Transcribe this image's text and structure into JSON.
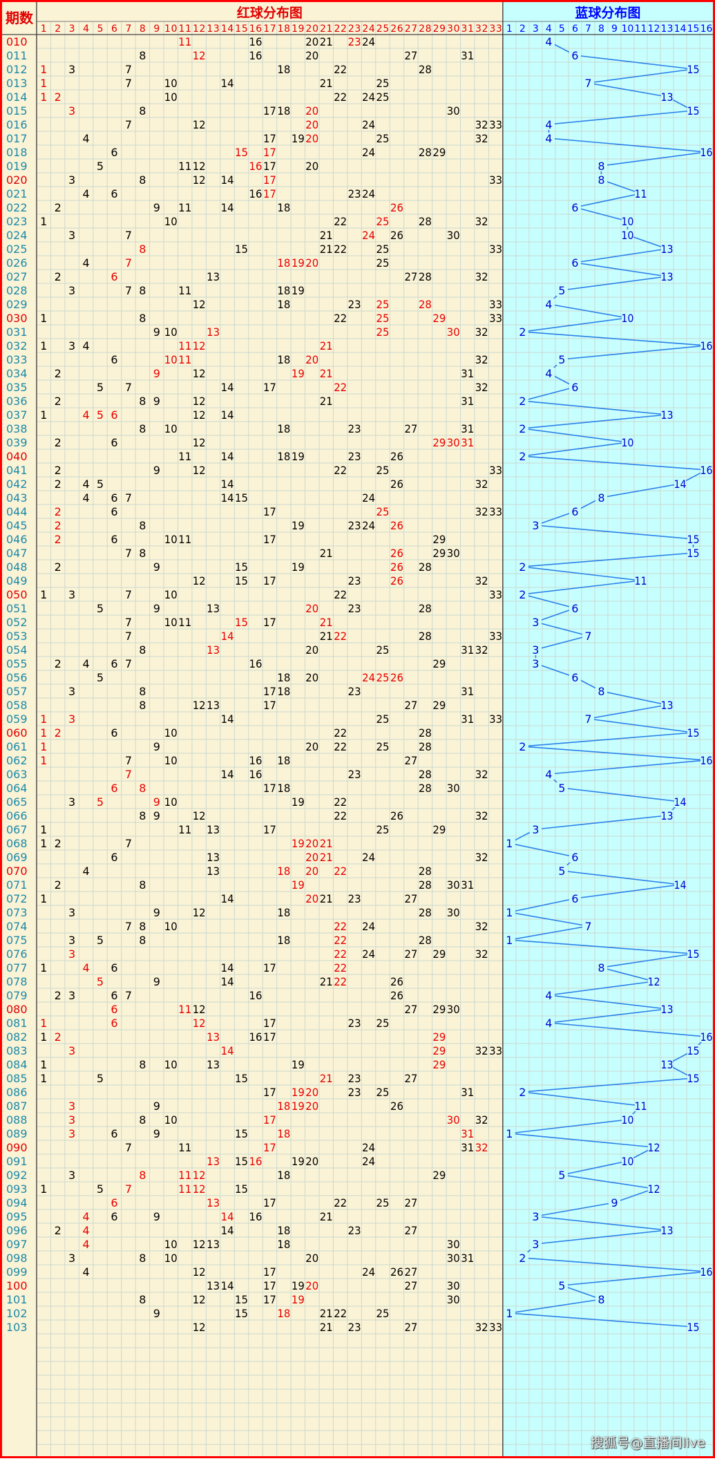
{
  "header": {
    "period_label": "期数",
    "red_title": "红球分布图",
    "blue_title": "蓝球分布图"
  },
  "watermark": "搜狐号@直播间live",
  "colors": {
    "red_bg": "#fbf3d6",
    "blue_bg": "#c7ffff",
    "border": "#ff0000",
    "red_num": "#e60000",
    "black_num": "#000000",
    "blue_num": "#0000d0",
    "line": "#2a7fe8",
    "grid": "#c9d9cf",
    "header_red": "#e00000",
    "header_blue": "#0000ff"
  },
  "chart_data": {
    "type": "table",
    "red_columns": [
      "1",
      "2",
      "3",
      "4",
      "5",
      "6",
      "7",
      "8",
      "9",
      "10",
      "11",
      "12",
      "13",
      "14",
      "15",
      "16",
      "17",
      "18",
      "19",
      "20",
      "21",
      "22",
      "23",
      "24",
      "25",
      "26",
      "27",
      "28",
      "29",
      "30",
      "31",
      "32",
      "33"
    ],
    "blue_columns": [
      "1",
      "2",
      "3",
      "4",
      "5",
      "6",
      "7",
      "8",
      "9",
      "10",
      "11",
      "12",
      "13",
      "14",
      "15",
      "16"
    ],
    "periods": [
      "010",
      "011",
      "012",
      "013",
      "014",
      "015",
      "016",
      "017",
      "018",
      "019",
      "020",
      "021",
      "022",
      "023",
      "024",
      "025",
      "026",
      "027",
      "028",
      "029",
      "030",
      "031",
      "032",
      "033",
      "034",
      "035",
      "036",
      "037",
      "038",
      "039",
      "040",
      "041",
      "042",
      "043",
      "044",
      "045",
      "046",
      "047",
      "048",
      "049",
      "050",
      "051",
      "052",
      "053",
      "054",
      "055",
      "056",
      "057",
      "058",
      "059",
      "060",
      "061",
      "062",
      "063",
      "064",
      "065",
      "066",
      "067",
      "068",
      "069",
      "070",
      "071",
      "072",
      "073",
      "074",
      "075",
      "076",
      "077",
      "078",
      "079",
      "080",
      "081",
      "082",
      "083",
      "084",
      "085",
      "086",
      "087",
      "088",
      "089",
      "090",
      "091",
      "092",
      "093",
      "094",
      "095",
      "096",
      "097",
      "098",
      "099",
      "100",
      "101",
      "102",
      "103"
    ],
    "red_period_labels": [
      "010",
      "020",
      "030",
      "040",
      "050",
      "060",
      "070",
      "080",
      "090",
      "100"
    ],
    "red_draws": [
      [
        11,
        16,
        20,
        21,
        23,
        24
      ],
      [
        8,
        12,
        16,
        20,
        27,
        31
      ],
      [
        1,
        3,
        7,
        18,
        22,
        28
      ],
      [
        1,
        7,
        10,
        14,
        21,
        25
      ],
      [
        1,
        2,
        10,
        22,
        24,
        25
      ],
      [
        3,
        8,
        17,
        18,
        20,
        30
      ],
      [
        7,
        12,
        20,
        24,
        32,
        33
      ],
      [
        4,
        17,
        19,
        20,
        25,
        32
      ],
      [
        6,
        15,
        17,
        24,
        28,
        29
      ],
      [
        5,
        11,
        12,
        16,
        17,
        20
      ],
      [
        3,
        8,
        12,
        14,
        17,
        33
      ],
      [
        4,
        6,
        16,
        17,
        23,
        24
      ],
      [
        2,
        9,
        11,
        14,
        18,
        26
      ],
      [
        1,
        10,
        22,
        25,
        28,
        32
      ],
      [
        3,
        7,
        21,
        24,
        26,
        30
      ],
      [
        8,
        15,
        21,
        22,
        25,
        33
      ],
      [
        4,
        7,
        18,
        19,
        20,
        25
      ],
      [
        2,
        6,
        13,
        27,
        28,
        32
      ],
      [
        3,
        7,
        8,
        11,
        18,
        19
      ],
      [
        12,
        18,
        23,
        25,
        28,
        33
      ],
      [
        1,
        8,
        22,
        25,
        29,
        33
      ],
      [
        9,
        10,
        13,
        25,
        30,
        32
      ],
      [
        1,
        3,
        4,
        11,
        12,
        21
      ],
      [
        6,
        10,
        11,
        18,
        20,
        32
      ],
      [
        2,
        9,
        12,
        19,
        21,
        31
      ],
      [
        5,
        7,
        14,
        17,
        22,
        32
      ],
      [
        2,
        8,
        9,
        12,
        21,
        31
      ],
      [
        1,
        4,
        5,
        6,
        12,
        14
      ],
      [
        8,
        10,
        18,
        23,
        27,
        31
      ],
      [
        2,
        6,
        12,
        29,
        30,
        31
      ],
      [
        11,
        14,
        18,
        19,
        23,
        26
      ],
      [
        2,
        9,
        12,
        22,
        25,
        33
      ],
      [
        2,
        4,
        5,
        14,
        26,
        32
      ],
      [
        4,
        6,
        7,
        14,
        15,
        24
      ],
      [
        2,
        6,
        17,
        25,
        32,
        33
      ],
      [
        2,
        8,
        19,
        23,
        24,
        26
      ],
      [
        2,
        6,
        10,
        11,
        17,
        29
      ],
      [
        7,
        8,
        21,
        26,
        29,
        30
      ],
      [
        2,
        9,
        15,
        19,
        26,
        28
      ],
      [
        12,
        15,
        17,
        23,
        26,
        32
      ],
      [
        1,
        3,
        7,
        10,
        22,
        33
      ],
      [
        5,
        9,
        13,
        20,
        23,
        28
      ],
      [
        7,
        10,
        11,
        15,
        17,
        21
      ],
      [
        7,
        14,
        21,
        22,
        28,
        33
      ],
      [
        8,
        13,
        20,
        25,
        31,
        32
      ],
      [
        2,
        4,
        6,
        7,
        16,
        29
      ],
      [
        5,
        18,
        20,
        24,
        25,
        26
      ],
      [
        3,
        8,
        17,
        18,
        23,
        31
      ],
      [
        8,
        12,
        13,
        17,
        27,
        29
      ],
      [
        1,
        3,
        14,
        25,
        31,
        33
      ],
      [
        1,
        2,
        6,
        10,
        22,
        28
      ],
      [
        1,
        9,
        20,
        22,
        25,
        28
      ],
      [
        1,
        7,
        10,
        16,
        18,
        27
      ],
      [
        7,
        14,
        16,
        23,
        28,
        32
      ],
      [
        6,
        8,
        17,
        18,
        28,
        30
      ],
      [
        3,
        5,
        9,
        10,
        19,
        22
      ],
      [
        8,
        9,
        12,
        22,
        26,
        32
      ],
      [
        1,
        11,
        13,
        17,
        25,
        29
      ],
      [
        1,
        2,
        7,
        19,
        20,
        21
      ],
      [
        6,
        13,
        20,
        21,
        24,
        32
      ],
      [
        4,
        13,
        18,
        20,
        22,
        28
      ],
      [
        2,
        8,
        19,
        28,
        30,
        31
      ],
      [
        1,
        14,
        20,
        21,
        23,
        27
      ],
      [
        3,
        9,
        12,
        18,
        28,
        30
      ],
      [
        7,
        8,
        10,
        22,
        24,
        32
      ],
      [
        3,
        5,
        8,
        18,
        22,
        28
      ],
      [
        3,
        22,
        24,
        27,
        29,
        32
      ],
      [
        1,
        4,
        6,
        14,
        17,
        22
      ],
      [
        5,
        9,
        14,
        21,
        22,
        26
      ],
      [
        2,
        3,
        6,
        7,
        16,
        26
      ],
      [
        6,
        11,
        12,
        27,
        29,
        30
      ],
      [
        1,
        6,
        12,
        17,
        23,
        25
      ],
      [
        1,
        2,
        13,
        16,
        17,
        29
      ],
      [
        3,
        14,
        29,
        32,
        33
      ],
      [
        1,
        8,
        10,
        13,
        19,
        29
      ],
      [
        1,
        5,
        15,
        21,
        23,
        27
      ],
      [
        17,
        19,
        20,
        23,
        25,
        31
      ],
      [
        3,
        9,
        18,
        19,
        20,
        26
      ],
      [
        3,
        8,
        10,
        17,
        30,
        32
      ],
      [
        3,
        6,
        9,
        15,
        18,
        31
      ],
      [
        7,
        11,
        17,
        24,
        31,
        32
      ],
      [
        13,
        15,
        16,
        19,
        20,
        24
      ],
      [
        3,
        8,
        11,
        12,
        18,
        29
      ],
      [
        1,
        5,
        7,
        11,
        12,
        15
      ],
      [
        6,
        13,
        17,
        22,
        25,
        27
      ],
      [
        4,
        6,
        9,
        14,
        16,
        21
      ],
      [
        2,
        4,
        14,
        18,
        23,
        27
      ],
      [
        4,
        10,
        12,
        13,
        18,
        30
      ],
      [
        3,
        8,
        10,
        20,
        30,
        31
      ],
      [
        4,
        12,
        17,
        24,
        26,
        27
      ],
      [
        13,
        14,
        17,
        19,
        20,
        27,
        30
      ],
      [
        8,
        12,
        15,
        17,
        19,
        30
      ],
      [
        9,
        15,
        18,
        21,
        22,
        25
      ],
      [
        12,
        21,
        23,
        27,
        32,
        33
      ]
    ],
    "red_highlight": [
      [
        11,
        23
      ],
      [
        12
      ],
      [
        1
      ],
      [
        1
      ],
      [
        1,
        2
      ],
      [
        3,
        20
      ],
      [
        20
      ],
      [
        20
      ],
      [
        15,
        17
      ],
      [
        16
      ],
      [
        17
      ],
      [
        17
      ],
      [
        26
      ],
      [
        25
      ],
      [
        24
      ],
      [
        8
      ],
      [
        7,
        18,
        19,
        20
      ],
      [
        6
      ],
      [],
      [
        25,
        28
      ],
      [
        25,
        29
      ],
      [
        13,
        25,
        30
      ],
      [
        11,
        12,
        21
      ],
      [
        10,
        11,
        20
      ],
      [
        9,
        19,
        21
      ],
      [
        22
      ],
      [],
      [
        4,
        5,
        6
      ],
      [],
      [
        29,
        30,
        31
      ],
      [],
      [],
      [],
      [],
      [
        2,
        25
      ],
      [
        2,
        26
      ],
      [
        2
      ],
      [
        26
      ],
      [
        26
      ],
      [
        26
      ],
      [],
      [
        20
      ],
      [
        15,
        21
      ],
      [
        14,
        22
      ],
      [
        13
      ],
      [],
      [
        24,
        25,
        26
      ],
      [],
      [],
      [
        1,
        3
      ],
      [
        1,
        2
      ],
      [
        1
      ],
      [
        1
      ],
      [
        7
      ],
      [
        6,
        8
      ],
      [
        5,
        9
      ],
      [],
      [],
      [
        19,
        20,
        21
      ],
      [
        20,
        21
      ],
      [
        18,
        20,
        22
      ],
      [
        19
      ],
      [
        20
      ],
      [],
      [
        22
      ],
      [
        22
      ],
      [
        3,
        22
      ],
      [
        4,
        22
      ],
      [
        5,
        22
      ],
      [],
      [
        6,
        11
      ],
      [
        1,
        6,
        12
      ],
      [
        2,
        13,
        29
      ],
      [
        3,
        14,
        29
      ],
      [
        29
      ],
      [
        21
      ],
      [
        19,
        20
      ],
      [
        3,
        18,
        19,
        20
      ],
      [
        3,
        17,
        30
      ],
      [
        3,
        18,
        31
      ],
      [
        17,
        32
      ],
      [
        13,
        16
      ],
      [
        8,
        11,
        12
      ],
      [
        7,
        11,
        12
      ],
      [
        6,
        13
      ],
      [
        4,
        14
      ],
      [
        4
      ],
      [
        4
      ],
      [],
      [],
      [
        20
      ],
      [
        19
      ],
      [
        18
      ],
      []
    ],
    "blue_draws": [
      4,
      6,
      15,
      7,
      13,
      15,
      4,
      4,
      16,
      8,
      8,
      11,
      6,
      10,
      10,
      13,
      6,
      13,
      5,
      4,
      10,
      2,
      16,
      5,
      4,
      6,
      2,
      13,
      2,
      10,
      2,
      16,
      14,
      8,
      6,
      3,
      15,
      15,
      2,
      11,
      2,
      6,
      3,
      7,
      3,
      3,
      6,
      8,
      13,
      7,
      15,
      2,
      16,
      4,
      5,
      14,
      13,
      3,
      1,
      6,
      5,
      14,
      6,
      1,
      7,
      1,
      15,
      8,
      12,
      4,
      13,
      4,
      16,
      15,
      13,
      15,
      2,
      11,
      10,
      1,
      12,
      10,
      5,
      12,
      9,
      3,
      13,
      3,
      2,
      16,
      5,
      8,
      1,
      15
    ]
  }
}
